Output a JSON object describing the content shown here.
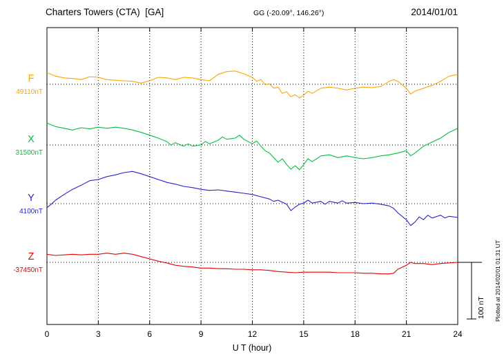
{
  "header": {
    "station": "Charters Towers (CTA)  [GA]",
    "coords": "GG (-20.09°, 146.26°)",
    "date": "2014/01/01"
  },
  "scale_bar": {
    "label": "100 nT",
    "span_nT": 100
  },
  "plotted_at": "Plotted at 2014/02/01 01:31 UT",
  "chart_data": {
    "type": "line",
    "title": "Charters Towers (CTA)  [GA]",
    "subtitle": "GG (-20.09°, 146.26°)  2014/01/01",
    "xlabel": "U T (hour)",
    "xlim": [
      0,
      24
    ],
    "x_ticks": [
      0,
      3,
      6,
      9,
      12,
      15,
      18,
      21,
      24
    ],
    "grid": "dotted vertical lines every 3 hours; dotted horizontal baseline per component",
    "legend_position": "left margin labels, one per trace",
    "scale_nT_per_bar": 100,
    "series": [
      {
        "name": "F",
        "color": "#FFA500",
        "baseline_label": "49110nT",
        "baseline_nT": 49110,
        "points": [
          [
            0,
            49130
          ],
          [
            0.5,
            49124
          ],
          [
            1,
            49121
          ],
          [
            1.5,
            49120
          ],
          [
            2,
            49118
          ],
          [
            2.5,
            49123
          ],
          [
            3,
            49122
          ],
          [
            3.5,
            49118
          ],
          [
            4,
            49117
          ],
          [
            4.5,
            49116
          ],
          [
            5,
            49115
          ],
          [
            5.5,
            49112
          ],
          [
            6,
            49116
          ],
          [
            6.5,
            49122
          ],
          [
            7,
            49121
          ],
          [
            7.5,
            49118
          ],
          [
            8,
            49122
          ],
          [
            8.5,
            49121
          ],
          [
            9,
            49118
          ],
          [
            9.5,
            49116
          ],
          [
            10,
            49127
          ],
          [
            10.5,
            49132
          ],
          [
            11,
            49133
          ],
          [
            11.5,
            49128
          ],
          [
            12,
            49122
          ],
          [
            12.25,
            49115
          ],
          [
            12.5,
            49118
          ],
          [
            12.75,
            49109
          ],
          [
            13,
            49111
          ],
          [
            13.25,
            49103
          ],
          [
            13.5,
            49105
          ],
          [
            13.75,
            49094
          ],
          [
            14,
            49097
          ],
          [
            14.25,
            49088
          ],
          [
            14.5,
            49092
          ],
          [
            14.75,
            49086
          ],
          [
            15,
            49091
          ],
          [
            15.25,
            49098
          ],
          [
            15.5,
            49094
          ],
          [
            16,
            49103
          ],
          [
            16.5,
            49105
          ],
          [
            17,
            49103
          ],
          [
            17.5,
            49100
          ],
          [
            18,
            49103
          ],
          [
            18.5,
            49105
          ],
          [
            19,
            49104
          ],
          [
            19.5,
            49106
          ],
          [
            20,
            49115
          ],
          [
            20.25,
            49118
          ],
          [
            20.5,
            49115
          ],
          [
            21,
            49103
          ],
          [
            21.25,
            49093
          ],
          [
            21.5,
            49098
          ],
          [
            22,
            49103
          ],
          [
            22.5,
            49108
          ],
          [
            23,
            49115
          ],
          [
            23.5,
            49124
          ],
          [
            24,
            49127
          ]
        ]
      },
      {
        "name": "X",
        "color": "#00C040",
        "baseline_label": "31500nT",
        "baseline_nT": 31500,
        "points": [
          [
            0,
            31538
          ],
          [
            0.5,
            31532
          ],
          [
            1,
            31529
          ],
          [
            1.5,
            31526
          ],
          [
            2,
            31530
          ],
          [
            2.5,
            31528
          ],
          [
            3,
            31531
          ],
          [
            3.5,
            31529
          ],
          [
            4,
            31531
          ],
          [
            4.5,
            31529
          ],
          [
            5,
            31526
          ],
          [
            5.5,
            31522
          ],
          [
            6,
            31517
          ],
          [
            6.5,
            31512
          ],
          [
            7,
            31506
          ],
          [
            7.25,
            31500
          ],
          [
            7.5,
            31504
          ],
          [
            8,
            31498
          ],
          [
            8.25,
            31502
          ],
          [
            8.5,
            31498
          ],
          [
            9,
            31500
          ],
          [
            9.25,
            31506
          ],
          [
            9.5,
            31502
          ],
          [
            10,
            31508
          ],
          [
            10.25,
            31514
          ],
          [
            10.5,
            31510
          ],
          [
            11,
            31512
          ],
          [
            11.25,
            31517
          ],
          [
            11.5,
            31510
          ],
          [
            12,
            31502
          ],
          [
            12.25,
            31507
          ],
          [
            12.5,
            31498
          ],
          [
            12.75,
            31490
          ],
          [
            13,
            31486
          ],
          [
            13.25,
            31478
          ],
          [
            13.5,
            31470
          ],
          [
            13.75,
            31476
          ],
          [
            14,
            31466
          ],
          [
            14.25,
            31458
          ],
          [
            14.5,
            31464
          ],
          [
            14.75,
            31457
          ],
          [
            15,
            31466
          ],
          [
            15.25,
            31476
          ],
          [
            15.5,
            31471
          ],
          [
            16,
            31481
          ],
          [
            16.5,
            31483
          ],
          [
            17,
            31478
          ],
          [
            17.5,
            31481
          ],
          [
            18,
            31478
          ],
          [
            18.5,
            31476
          ],
          [
            19,
            31478
          ],
          [
            19.5,
            31481
          ],
          [
            20,
            31483
          ],
          [
            20.5,
            31486
          ],
          [
            21,
            31490
          ],
          [
            21.25,
            31481
          ],
          [
            21.5,
            31486
          ],
          [
            22,
            31498
          ],
          [
            22.5,
            31505
          ],
          [
            23,
            31512
          ],
          [
            23.5,
            31522
          ],
          [
            24,
            31529
          ]
        ]
      },
      {
        "name": "Y",
        "color": "#2222CC",
        "baseline_label": "4100nT",
        "baseline_nT": 4100,
        "points": [
          [
            0,
            4093
          ],
          [
            0.25,
            4099
          ],
          [
            0.5,
            4106
          ],
          [
            1,
            4116
          ],
          [
            1.5,
            4125
          ],
          [
            2,
            4132
          ],
          [
            2.5,
            4140
          ],
          [
            3,
            4142
          ],
          [
            3.5,
            4147
          ],
          [
            4,
            4150
          ],
          [
            4.5,
            4154
          ],
          [
            5,
            4156
          ],
          [
            5.5,
            4152
          ],
          [
            6,
            4147
          ],
          [
            6.5,
            4142
          ],
          [
            7,
            4137
          ],
          [
            7.5,
            4134
          ],
          [
            8,
            4130
          ],
          [
            8.5,
            4128
          ],
          [
            9,
            4125
          ],
          [
            9.5,
            4123
          ],
          [
            10,
            4124
          ],
          [
            10.5,
            4122
          ],
          [
            11,
            4120
          ],
          [
            11.5,
            4118
          ],
          [
            12,
            4116
          ],
          [
            12.5,
            4112
          ],
          [
            13,
            4108
          ],
          [
            13.25,
            4104
          ],
          [
            13.5,
            4106
          ],
          [
            14,
            4099
          ],
          [
            14.25,
            4088
          ],
          [
            14.5,
            4094
          ],
          [
            14.75,
            4099
          ],
          [
            15,
            4101
          ],
          [
            15.25,
            4106
          ],
          [
            15.5,
            4101
          ],
          [
            16,
            4104
          ],
          [
            16.25,
            4099
          ],
          [
            16.5,
            4104
          ],
          [
            17,
            4101
          ],
          [
            17.25,
            4105
          ],
          [
            17.5,
            4101
          ],
          [
            18,
            4102
          ],
          [
            18.5,
            4100
          ],
          [
            19,
            4101
          ],
          [
            19.5,
            4099
          ],
          [
            20,
            4096
          ],
          [
            20.25,
            4092
          ],
          [
            20.5,
            4084
          ],
          [
            21,
            4072
          ],
          [
            21.25,
            4062
          ],
          [
            21.5,
            4068
          ],
          [
            21.75,
            4077
          ],
          [
            22,
            4072
          ],
          [
            22.25,
            4080
          ],
          [
            22.5,
            4075
          ],
          [
            23,
            4080
          ],
          [
            23.25,
            4075
          ],
          [
            23.5,
            4078
          ],
          [
            24,
            4076
          ]
        ]
      },
      {
        "name": "Z",
        "color": "#E60000",
        "baseline_label": "-37450nT",
        "baseline_nT": -37450,
        "points": [
          [
            0,
            -37436
          ],
          [
            0.5,
            -37438
          ],
          [
            1,
            -37437
          ],
          [
            1.5,
            -37436
          ],
          [
            2,
            -37437
          ],
          [
            2.5,
            -37436
          ],
          [
            3,
            -37436
          ],
          [
            3.5,
            -37434
          ],
          [
            4,
            -37436
          ],
          [
            4.5,
            -37434
          ],
          [
            5,
            -37436
          ],
          [
            5.5,
            -37440
          ],
          [
            6,
            -37444
          ],
          [
            6.5,
            -37448
          ],
          [
            7,
            -37451
          ],
          [
            7.5,
            -37455
          ],
          [
            8,
            -37457
          ],
          [
            8.5,
            -37458
          ],
          [
            9,
            -37460
          ],
          [
            9.5,
            -37460
          ],
          [
            10,
            -37461
          ],
          [
            10.5,
            -37461
          ],
          [
            11,
            -37462
          ],
          [
            11.5,
            -37462
          ],
          [
            12,
            -37463
          ],
          [
            12.5,
            -37463
          ],
          [
            13,
            -37464
          ],
          [
            13.5,
            -37466
          ],
          [
            14,
            -37467
          ],
          [
            14.5,
            -37468
          ],
          [
            15,
            -37467
          ],
          [
            15.5,
            -37467
          ],
          [
            16,
            -37467
          ],
          [
            16.5,
            -37467
          ],
          [
            17,
            -37468
          ],
          [
            17.5,
            -37468
          ],
          [
            18,
            -37468
          ],
          [
            18.5,
            -37469
          ],
          [
            19,
            -37469
          ],
          [
            19.5,
            -37470
          ],
          [
            20,
            -37470
          ],
          [
            20.25,
            -37469
          ],
          [
            20.5,
            -37462
          ],
          [
            21,
            -37455
          ],
          [
            21.25,
            -37450
          ],
          [
            21.5,
            -37452
          ],
          [
            22,
            -37452
          ],
          [
            22.5,
            -37454
          ],
          [
            23,
            -37452
          ],
          [
            23.5,
            -37451
          ],
          [
            24,
            -37450
          ]
        ]
      }
    ]
  }
}
